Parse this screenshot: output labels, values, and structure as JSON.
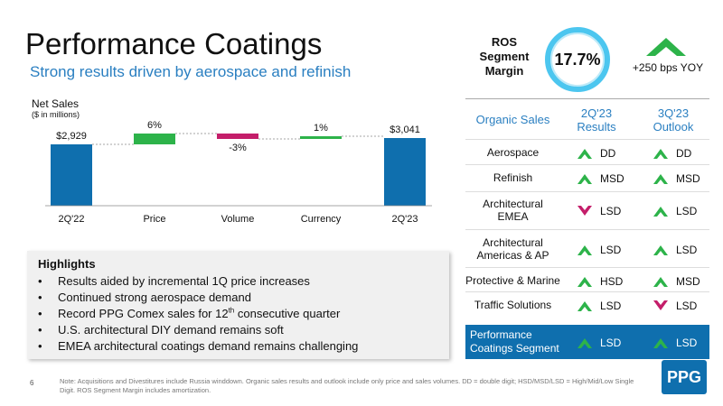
{
  "header": {
    "title": "Performance Coatings",
    "subtitle": "Strong results driven by aerospace and refinish"
  },
  "ros": {
    "label_lines": [
      "ROS",
      "Segment",
      "Margin"
    ],
    "value": "17.7%",
    "yoy": "+250 bps YOY",
    "yoy_direction": "up-arrow-icon"
  },
  "net_sales": {
    "label": "Net Sales",
    "sublabel": "($ in millions)"
  },
  "chart_data": {
    "type": "bar",
    "categories": [
      "2Q'22",
      "Price",
      "Volume",
      "Currency",
      "2Q'23"
    ],
    "values": [
      2929,
      176,
      -88,
      29,
      3041
    ],
    "data_labels": [
      "$2,929",
      "6%",
      "-3%",
      "1%",
      "$3,041"
    ],
    "kinds": [
      "total",
      "increase",
      "decrease",
      "increase",
      "total"
    ],
    "colors": {
      "total": "#0f6fae",
      "increase": "#2db34a",
      "decrease": "#c41e6a"
    }
  },
  "highlights": {
    "title": "Highlights",
    "items": [
      {
        "text": "Results aided by incremental 1Q price increases"
      },
      {
        "text": "Continued strong aerospace demand"
      },
      {
        "text_pre": "Record PPG Comex sales for 12",
        "sup": "th",
        "text_post": " consecutive quarter"
      },
      {
        "text": "U.S. architectural DIY demand remains soft"
      },
      {
        "text": "EMEA architectural coatings demand remains challenging"
      }
    ]
  },
  "organic_table": {
    "headers": {
      "label": "Organic Sales",
      "results": [
        "2Q'23",
        "Results"
      ],
      "outlook": [
        "3Q'23",
        "Outlook"
      ]
    },
    "rows": [
      {
        "label": [
          "Aerospace"
        ],
        "result": "DD",
        "result_dir": "up",
        "outlook": "DD",
        "outlook_dir": "up"
      },
      {
        "label": [
          "Refinish"
        ],
        "result": "MSD",
        "result_dir": "up",
        "outlook": "MSD",
        "outlook_dir": "up"
      },
      {
        "label": [
          "Architectural",
          "EMEA"
        ],
        "result": "LSD",
        "result_dir": "down",
        "outlook": "LSD",
        "outlook_dir": "up"
      },
      {
        "label": [
          "Architectural",
          "Americas & AP"
        ],
        "result": "LSD",
        "result_dir": "up",
        "outlook": "LSD",
        "outlook_dir": "up"
      },
      {
        "label": [
          "Protective & Marine"
        ],
        "result": "HSD",
        "result_dir": "up",
        "outlook": "MSD",
        "outlook_dir": "up"
      },
      {
        "label": [
          "Traffic Solutions"
        ],
        "result": "LSD",
        "result_dir": "up",
        "outlook": "LSD",
        "outlook_dir": "down"
      }
    ],
    "segment": {
      "label": [
        "Performance",
        "Coatings Segment"
      ],
      "result": "LSD",
      "result_dir": "up",
      "outlook": "LSD",
      "outlook_dir": "up"
    }
  },
  "colors": {
    "up": "#2db34a",
    "down": "#c41e6a",
    "accent": "#2a7fc1",
    "brand": "#0f6fae"
  },
  "footer": {
    "page_number": "6",
    "note": "Note: Acquisitions and Divestitures include Russia winddown. Organic sales results and outlook include only price and sales volumes. DD = double digit; HSD/MSD/LSD = High/Mid/Low Single Digit. ROS Segment Margin includes amortization.",
    "logo_text": "PPG"
  }
}
